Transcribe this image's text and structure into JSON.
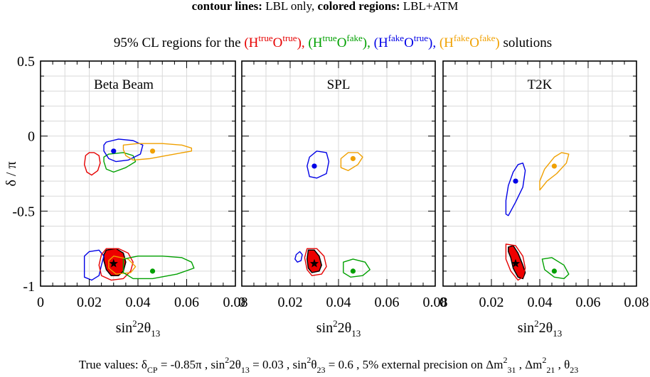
{
  "header": {
    "line1": [
      {
        "text": "contour lines: ",
        "bold": true,
        "color": "#000000"
      },
      {
        "text": "LBL only,  ",
        "bold": false,
        "color": "#000000"
      },
      {
        "text": "colored regions: ",
        "bold": true,
        "color": "#000000"
      },
      {
        "text": "LBL+ATM",
        "bold": false,
        "color": "#000000"
      }
    ],
    "line2_prefix": "95% CL regions for the ",
    "line2_solutions": [
      {
        "H": "true",
        "O": "true",
        "color": "#e60000",
        "sep": ", "
      },
      {
        "H": "true",
        "O": "fake",
        "color": "#00a000",
        "sep": ", "
      },
      {
        "H": "fake",
        "O": "true",
        "color": "#0000e6",
        "sep": ", "
      },
      {
        "H": "fake",
        "O": "fake",
        "color": "#f0a000",
        "sep": ""
      }
    ],
    "line2_suffix": "  solutions"
  },
  "footer": {
    "parts": [
      {
        "text": "True values: δ",
        "kind": "norm"
      },
      {
        "text": "CP",
        "kind": "sub"
      },
      {
        "text": " = -0.85π ,  sin",
        "kind": "norm"
      },
      {
        "text": "2",
        "kind": "sup"
      },
      {
        "text": "2θ",
        "kind": "norm"
      },
      {
        "text": "13",
        "kind": "sub"
      },
      {
        "text": " =  0.03 ,  sin",
        "kind": "norm"
      },
      {
        "text": "2",
        "kind": "sup"
      },
      {
        "text": "θ",
        "kind": "norm"
      },
      {
        "text": "23",
        "kind": "sub"
      },
      {
        "text": " = 0.6 ,  5% external precision on Δm",
        "kind": "norm"
      },
      {
        "text": "2",
        "kind": "sup"
      },
      {
        "text": "31",
        "kind": "sub"
      },
      {
        "text": " , Δm",
        "kind": "norm"
      },
      {
        "text": "2",
        "kind": "sup"
      },
      {
        "text": "21",
        "kind": "sub"
      },
      {
        "text": " , θ",
        "kind": "norm"
      },
      {
        "text": "23",
        "kind": "sub"
      }
    ]
  },
  "chart_data": {
    "type": "scatter",
    "colors": {
      "red": "#e60000",
      "green": "#00a000",
      "blue": "#0000e6",
      "orange": "#f0a000",
      "fill_red": "#ee0000"
    },
    "ylabel": "δ / π",
    "xlabel": {
      "base": "sin",
      "sup": "2",
      "mid": "2θ",
      "sub": "13"
    },
    "xlim": [
      0,
      0.08
    ],
    "ylim": [
      -1,
      0.5
    ],
    "xticks": [
      0,
      0.02,
      0.04,
      0.06,
      0.08
    ],
    "xtick_labels": [
      "0",
      "0.02",
      "0.04",
      "0.06",
      "0.08"
    ],
    "yticks": [
      0.5,
      0,
      -0.5,
      -1
    ],
    "ytick_labels": [
      "0.5",
      "0",
      "-0.5",
      "-1"
    ],
    "grid": true,
    "panels": [
      {
        "title": "Beta Beam",
        "contours": [
          {
            "color": "red",
            "points": [
              [
                0.022,
                -0.11
              ],
              [
                0.024,
                -0.13
              ],
              [
                0.0245,
                -0.18
              ],
              [
                0.0235,
                -0.23
              ],
              [
                0.021,
                -0.26
              ],
              [
                0.019,
                -0.24
              ],
              [
                0.018,
                -0.19
              ],
              [
                0.0185,
                -0.13
              ],
              [
                0.02,
                -0.11
              ]
            ]
          },
          {
            "color": "green",
            "points": [
              [
                0.028,
                -0.12
              ],
              [
                0.034,
                -0.11
              ],
              [
                0.038,
                -0.13
              ],
              [
                0.039,
                -0.17
              ],
              [
                0.035,
                -0.21
              ],
              [
                0.03,
                -0.24
              ],
              [
                0.027,
                -0.22
              ],
              [
                0.026,
                -0.17
              ],
              [
                0.026,
                -0.14
              ]
            ]
          },
          {
            "color": "blue",
            "points": [
              [
                0.027,
                -0.04
              ],
              [
                0.032,
                -0.02
              ],
              [
                0.038,
                -0.03
              ],
              [
                0.042,
                -0.06
              ],
              [
                0.041,
                -0.12
              ],
              [
                0.036,
                -0.16
              ],
              [
                0.031,
                -0.17
              ],
              [
                0.028,
                -0.15
              ],
              [
                0.026,
                -0.1
              ],
              [
                0.026,
                -0.06
              ]
            ]
          },
          {
            "color": "orange",
            "points": [
              [
                0.034,
                -0.06
              ],
              [
                0.04,
                -0.05
              ],
              [
                0.05,
                -0.05
              ],
              [
                0.058,
                -0.06
              ],
              [
                0.062,
                -0.08
              ],
              [
                0.062,
                -0.1
              ],
              [
                0.055,
                -0.12
              ],
              [
                0.045,
                -0.15
              ],
              [
                0.038,
                -0.16
              ],
              [
                0.035,
                -0.13
              ],
              [
                0.034,
                -0.09
              ]
            ]
          },
          {
            "color": "blue",
            "points": [
              [
                0.02,
                -0.77
              ],
              [
                0.024,
                -0.76
              ],
              [
                0.026,
                -0.8
              ],
              [
                0.025,
                -0.86
              ],
              [
                0.024,
                -0.93
              ],
              [
                0.021,
                -0.96
              ],
              [
                0.018,
                -0.94
              ],
              [
                0.018,
                -0.87
              ],
              [
                0.018,
                -0.8
              ]
            ]
          },
          {
            "color": "red",
            "points": [
              [
                0.027,
                -0.75
              ],
              [
                0.032,
                -0.75
              ],
              [
                0.036,
                -0.78
              ],
              [
                0.038,
                -0.84
              ],
              [
                0.037,
                -0.9
              ],
              [
                0.034,
                -0.95
              ],
              [
                0.029,
                -0.96
              ],
              [
                0.025,
                -0.93
              ],
              [
                0.024,
                -0.86
              ],
              [
                0.025,
                -0.79
              ]
            ]
          },
          {
            "color": "orange",
            "points": [
              [
                0.03,
                -0.8
              ],
              [
                0.036,
                -0.82
              ],
              [
                0.039,
                -0.87
              ],
              [
                0.037,
                -0.91
              ],
              [
                0.031,
                -0.92
              ],
              [
                0.028,
                -0.88
              ],
              [
                0.028,
                -0.83
              ]
            ]
          },
          {
            "color": "green",
            "points": [
              [
                0.034,
                -0.82
              ],
              [
                0.04,
                -0.8
              ],
              [
                0.05,
                -0.8
              ],
              [
                0.058,
                -0.81
              ],
              [
                0.062,
                -0.84
              ],
              [
                0.063,
                -0.88
              ],
              [
                0.056,
                -0.92
              ],
              [
                0.046,
                -0.95
              ],
              [
                0.038,
                -0.95
              ],
              [
                0.034,
                -0.91
              ],
              [
                0.034,
                -0.86
              ]
            ]
          }
        ],
        "filled": [
          {
            "color": "fill_red",
            "points": [
              [
                0.027,
                -0.76
              ],
              [
                0.031,
                -0.75
              ],
              [
                0.034,
                -0.78
              ],
              [
                0.035,
                -0.84
              ],
              [
                0.034,
                -0.9
              ],
              [
                0.032,
                -0.93
              ],
              [
                0.029,
                -0.93
              ],
              [
                0.027,
                -0.89
              ],
              [
                0.026,
                -0.83
              ],
              [
                0.026,
                -0.79
              ]
            ]
          }
        ],
        "true_point": [
          0.03,
          -0.85
        ],
        "points": [
          {
            "color": "blue",
            "x": 0.03,
            "y": -0.1
          },
          {
            "color": "orange",
            "x": 0.046,
            "y": -0.1
          },
          {
            "color": "green",
            "x": 0.046,
            "y": -0.9
          }
        ]
      },
      {
        "title": "SPL",
        "contours": [
          {
            "color": "blue",
            "points": [
              [
                0.028,
                -0.14
              ],
              [
                0.031,
                -0.1
              ],
              [
                0.035,
                -0.11
              ],
              [
                0.036,
                -0.17
              ],
              [
                0.035,
                -0.25
              ],
              [
                0.031,
                -0.28
              ],
              [
                0.028,
                -0.27
              ],
              [
                0.027,
                -0.2
              ]
            ]
          },
          {
            "color": "orange",
            "points": [
              [
                0.041,
                -0.15
              ],
              [
                0.044,
                -0.11
              ],
              [
                0.048,
                -0.11
              ],
              [
                0.05,
                -0.14
              ],
              [
                0.048,
                -0.19
              ],
              [
                0.044,
                -0.23
              ],
              [
                0.041,
                -0.21
              ]
            ]
          },
          {
            "color": "blue",
            "points": [
              [
                0.0225,
                -0.79
              ],
              [
                0.024,
                -0.77
              ],
              [
                0.025,
                -0.79
              ],
              [
                0.0245,
                -0.83
              ],
              [
                0.023,
                -0.84
              ],
              [
                0.022,
                -0.82
              ]
            ]
          },
          {
            "color": "red",
            "points": [
              [
                0.027,
                -0.75
              ],
              [
                0.031,
                -0.75
              ],
              [
                0.034,
                -0.8
              ],
              [
                0.035,
                -0.87
              ],
              [
                0.033,
                -0.92
              ],
              [
                0.029,
                -0.93
              ],
              [
                0.027,
                -0.89
              ],
              [
                0.026,
                -0.81
              ]
            ]
          },
          {
            "color": "green",
            "points": [
              [
                0.042,
                -0.84
              ],
              [
                0.046,
                -0.82
              ],
              [
                0.051,
                -0.84
              ],
              [
                0.053,
                -0.89
              ],
              [
                0.05,
                -0.93
              ],
              [
                0.045,
                -0.94
              ],
              [
                0.042,
                -0.91
              ]
            ]
          }
        ],
        "filled": [
          {
            "color": "fill_red",
            "points": [
              [
                0.0275,
                -0.76
              ],
              [
                0.03,
                -0.76
              ],
              [
                0.032,
                -0.8
              ],
              [
                0.033,
                -0.86
              ],
              [
                0.032,
                -0.9
              ],
              [
                0.029,
                -0.91
              ],
              [
                0.0275,
                -0.88
              ],
              [
                0.027,
                -0.82
              ]
            ]
          }
        ],
        "true_point": [
          0.03,
          -0.85
        ],
        "points": [
          {
            "color": "blue",
            "x": 0.03,
            "y": -0.2
          },
          {
            "color": "orange",
            "x": 0.046,
            "y": -0.15
          },
          {
            "color": "green",
            "x": 0.046,
            "y": -0.9
          }
        ]
      },
      {
        "title": "T2K",
        "contours": [
          {
            "color": "blue",
            "points": [
              [
                0.031,
                -0.19
              ],
              [
                0.033,
                -0.18
              ],
              [
                0.034,
                -0.23
              ],
              [
                0.033,
                -0.34
              ],
              [
                0.03,
                -0.44
              ],
              [
                0.027,
                -0.53
              ],
              [
                0.026,
                -0.52
              ],
              [
                0.026,
                -0.43
              ],
              [
                0.027,
                -0.33
              ],
              [
                0.029,
                -0.24
              ]
            ]
          },
          {
            "color": "orange",
            "points": [
              [
                0.046,
                -0.14
              ],
              [
                0.049,
                -0.11
              ],
              [
                0.052,
                -0.12
              ],
              [
                0.051,
                -0.18
              ],
              [
                0.047,
                -0.25
              ],
              [
                0.043,
                -0.3
              ],
              [
                0.04,
                -0.36
              ],
              [
                0.04,
                -0.3
              ],
              [
                0.042,
                -0.22
              ]
            ]
          },
          {
            "color": "red",
            "points": [
              [
                0.026,
                -0.72
              ],
              [
                0.03,
                -0.73
              ],
              [
                0.033,
                -0.8
              ],
              [
                0.034,
                -0.88
              ],
              [
                0.033,
                -0.94
              ],
              [
                0.031,
                -0.96
              ],
              [
                0.028,
                -0.9
              ],
              [
                0.026,
                -0.82
              ]
            ]
          },
          {
            "color": "green",
            "points": [
              [
                0.041,
                -0.82
              ],
              [
                0.045,
                -0.81
              ],
              [
                0.05,
                -0.86
              ],
              [
                0.052,
                -0.92
              ],
              [
                0.05,
                -0.95
              ],
              [
                0.046,
                -0.94
              ],
              [
                0.042,
                -0.89
              ]
            ]
          }
        ],
        "filled": [
          {
            "color": "fill_red",
            "points": [
              [
                0.027,
                -0.74
              ],
              [
                0.029,
                -0.73
              ],
              [
                0.031,
                -0.78
              ],
              [
                0.033,
                -0.86
              ],
              [
                0.034,
                -0.91
              ],
              [
                0.033,
                -0.95
              ],
              [
                0.031,
                -0.94
              ],
              [
                0.029,
                -0.88
              ],
              [
                0.028,
                -0.81
              ],
              [
                0.027,
                -0.77
              ]
            ]
          }
        ],
        "true_point": [
          0.03,
          -0.85
        ],
        "points": [
          {
            "color": "blue",
            "x": 0.03,
            "y": -0.3
          },
          {
            "color": "orange",
            "x": 0.046,
            "y": -0.2
          },
          {
            "color": "green",
            "x": 0.046,
            "y": -0.9
          }
        ]
      }
    ]
  }
}
